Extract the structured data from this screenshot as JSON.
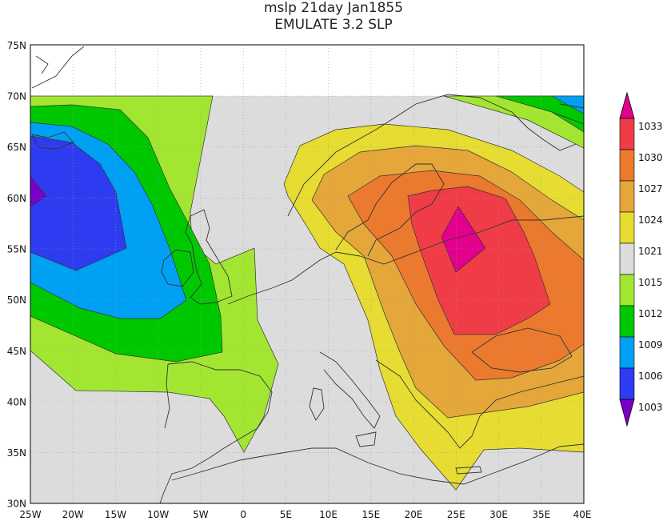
{
  "title": {
    "line1": "mslp 21day Jan1855",
    "line2": "EMULATE 3.2 SLP"
  },
  "map": {
    "lon_range": [
      -25,
      40
    ],
    "lat_range": [
      30,
      75
    ],
    "lon_ticks": [
      "25W",
      "20W",
      "15W",
      "10W",
      "5W",
      "0",
      "5E",
      "10E",
      "15E",
      "20E",
      "25E",
      "30E",
      "35E",
      "40E"
    ],
    "lat_ticks": [
      "75N",
      "70N",
      "65N",
      "60N",
      "55N",
      "50N",
      "45N",
      "40N",
      "35N",
      "30N"
    ],
    "grid_lines": "dotted",
    "land_outlines": true
  },
  "colorbar": {
    "labels": [
      "1033",
      "1030",
      "1027",
      "1024",
      "1021",
      "1015",
      "1012",
      "1009",
      "1006",
      "1003"
    ],
    "colors": [
      "#e2008c",
      "#f03c46",
      "#eb7a2e",
      "#e5a63a",
      "#e6dc32",
      "#dcdcdc",
      "#a3e632",
      "#00c800",
      "#00a0f5",
      "#2d3cf0",
      "#7800c8"
    ],
    "extend_both": true
  },
  "legend_colors": {
    "lt1003": "#7800c8",
    "c1003_1006": "#2d3cf0",
    "c1006_1009": "#00a0f5",
    "c1009_1012": "#00c800",
    "c1012_1015": "#a3e632",
    "c1015_1021": "#dcdcdc",
    "c1021_1024": "#e6dc32",
    "c1024_1027": "#e5a63a",
    "c1027_1030": "#eb7a2e",
    "c1030_1033": "#f03c46",
    "gt1033": "#e2008c"
  }
}
